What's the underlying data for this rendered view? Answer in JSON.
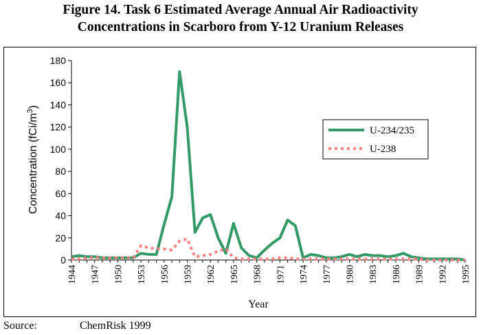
{
  "figure": {
    "title_line1": "Figure 14. Task 6 Estimated Average Annual Air Radioactivity",
    "title_line2": "Concentrations in Scarboro from Y-12 Uranium Releases"
  },
  "source": {
    "label": "Source:",
    "value": "ChemRisk 1999"
  },
  "chart_data": {
    "type": "line",
    "xlabel": "Year",
    "ylabel": "Concentration (fCi/m",
    "ylabel_superscript": "3",
    "ylabel_close": ")",
    "ylim": [
      0,
      180
    ],
    "yticks": [
      "0",
      "20",
      "40",
      "60",
      "80",
      "100",
      "120",
      "140",
      "160",
      "180"
    ],
    "xlim": [
      1944,
      1995
    ],
    "xticks": [
      "1944",
      "1947",
      "1950",
      "1953",
      "1956",
      "1959",
      "1962",
      "1965",
      "1968",
      "1971",
      "1974",
      "1977",
      "1980",
      "1983",
      "1986",
      "1989",
      "1992",
      "1995"
    ],
    "legend_position": "right",
    "series": [
      {
        "name": "U-234/235",
        "color": "#339966",
        "style": "solid",
        "x": [
          1944,
          1945,
          1946,
          1947,
          1948,
          1949,
          1950,
          1951,
          1952,
          1953,
          1954,
          1955,
          1956,
          1957,
          1958,
          1959,
          1960,
          1961,
          1962,
          1963,
          1964,
          1965,
          1966,
          1967,
          1968,
          1969,
          1970,
          1971,
          1972,
          1973,
          1974,
          1975,
          1976,
          1977,
          1978,
          1979,
          1980,
          1981,
          1982,
          1983,
          1984,
          1985,
          1986,
          1987,
          1988,
          1989,
          1990,
          1991,
          1992,
          1993,
          1994,
          1995
        ],
        "values": [
          3,
          4,
          3,
          3,
          2,
          2,
          2,
          2,
          2,
          6,
          5,
          5,
          32,
          57,
          170,
          120,
          25,
          38,
          41,
          20,
          6,
          33,
          11,
          4,
          2,
          9,
          15,
          20,
          36,
          31,
          2,
          5,
          4,
          2,
          2,
          3,
          5,
          3,
          5,
          4,
          4,
          3,
          4,
          6,
          3,
          2,
          1,
          1,
          1,
          1,
          1,
          0
        ]
      },
      {
        "name": "U-238",
        "color": "#ff7f7f",
        "style": "dotted",
        "x": [
          1944,
          1945,
          1946,
          1947,
          1948,
          1949,
          1950,
          1951,
          1952,
          1953,
          1954,
          1955,
          1956,
          1957,
          1958,
          1959,
          1960,
          1961,
          1962,
          1963,
          1964,
          1965,
          1966,
          1967,
          1968,
          1969,
          1970,
          1971,
          1972,
          1973,
          1974,
          1975,
          1976,
          1977,
          1978,
          1979,
          1980,
          1981,
          1982,
          1983,
          1984,
          1985,
          1986,
          1987,
          1988,
          1989,
          1990,
          1991,
          1992,
          1993,
          1994,
          1995
        ],
        "values": [
          1,
          1,
          2,
          2,
          2,
          2,
          2,
          2,
          2,
          13,
          11,
          10,
          10,
          9,
          17,
          19,
          3,
          4,
          5,
          8,
          10,
          2,
          1,
          1,
          1,
          1,
          1,
          2,
          2,
          1,
          1,
          1,
          1,
          1,
          1,
          1,
          1,
          1,
          1,
          1,
          1,
          1,
          1,
          1,
          1,
          1,
          0,
          0,
          0,
          0,
          0,
          0
        ]
      }
    ]
  }
}
